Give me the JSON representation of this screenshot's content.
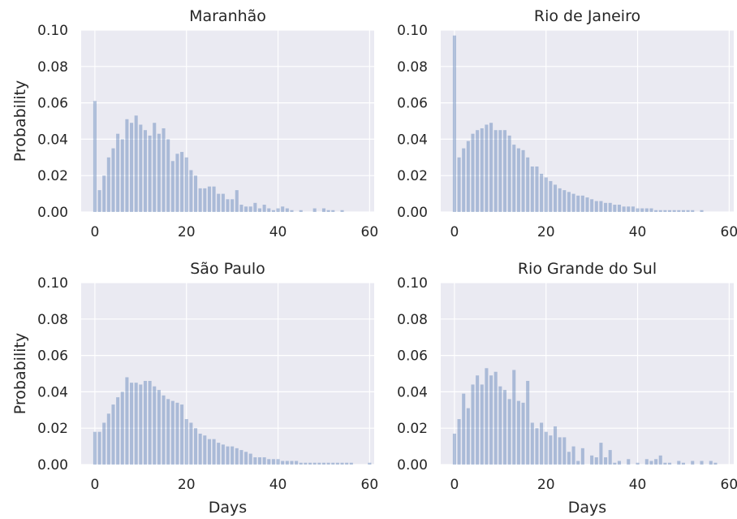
{
  "colors": {
    "panel_background": "#eaeaf2",
    "grid": "#ffffff",
    "bar_fill": "#4c72b0",
    "bar_opacity": 0.4,
    "text": "#262626"
  },
  "chart_data": [
    {
      "type": "bar",
      "title": "Maranhão",
      "xlabel": "",
      "ylabel": "Probability",
      "xlim": [
        -3,
        61
      ],
      "ylim": [
        0,
        0.1
      ],
      "grid": true,
      "xticks": [
        0,
        20,
        40,
        60
      ],
      "xtick_labels": [
        "0",
        "20",
        "40",
        "60"
      ],
      "yticks": [
        0,
        0.02,
        0.04,
        0.06,
        0.08,
        0.1
      ],
      "ytick_labels": [
        "0.00",
        "0.02",
        "0.04",
        "0.06",
        "0.08",
        "0.10"
      ],
      "x": [
        0,
        1,
        2,
        3,
        4,
        5,
        6,
        7,
        8,
        9,
        10,
        11,
        12,
        13,
        14,
        15,
        16,
        17,
        18,
        19,
        20,
        21,
        22,
        23,
        24,
        25,
        26,
        27,
        28,
        29,
        30,
        31,
        32,
        33,
        34,
        35,
        36,
        37,
        38,
        39,
        40,
        41,
        42,
        43,
        44,
        45,
        46,
        47,
        48,
        49,
        50,
        51,
        52,
        53,
        54,
        55,
        56,
        57,
        58,
        59,
        60
      ],
      "values": [
        0.061,
        0.012,
        0.02,
        0.03,
        0.035,
        0.043,
        0.04,
        0.051,
        0.049,
        0.053,
        0.048,
        0.045,
        0.042,
        0.049,
        0.043,
        0.046,
        0.04,
        0.028,
        0.032,
        0.033,
        0.03,
        0.023,
        0.02,
        0.013,
        0.013,
        0.014,
        0.014,
        0.01,
        0.01,
        0.007,
        0.007,
        0.012,
        0.004,
        0.003,
        0.003,
        0.005,
        0.002,
        0.004,
        0.002,
        0.001,
        0.002,
        0.003,
        0.002,
        0.001,
        0.0,
        0.001,
        0.0,
        0.0,
        0.002,
        0.0,
        0.002,
        0.001,
        0.001,
        0.0,
        0.001,
        0.0,
        0.0,
        0.0,
        0.0,
        0.0,
        0.0
      ]
    },
    {
      "type": "bar",
      "title": "Rio de Janeiro",
      "xlabel": "",
      "ylabel": "",
      "xlim": [
        -3,
        61
      ],
      "ylim": [
        0,
        0.1
      ],
      "grid": true,
      "xticks": [
        0,
        20,
        40,
        60
      ],
      "xtick_labels": [
        "0",
        "20",
        "40",
        "60"
      ],
      "yticks": [
        0,
        0.02,
        0.04,
        0.06,
        0.08,
        0.1
      ],
      "ytick_labels": [
        "0.00",
        "0.02",
        "0.04",
        "0.06",
        "0.08",
        "0.10"
      ],
      "x": [
        0,
        1,
        2,
        3,
        4,
        5,
        6,
        7,
        8,
        9,
        10,
        11,
        12,
        13,
        14,
        15,
        16,
        17,
        18,
        19,
        20,
        21,
        22,
        23,
        24,
        25,
        26,
        27,
        28,
        29,
        30,
        31,
        32,
        33,
        34,
        35,
        36,
        37,
        38,
        39,
        40,
        41,
        42,
        43,
        44,
        45,
        46,
        47,
        48,
        49,
        50,
        51,
        52,
        53,
        54,
        55,
        56,
        57,
        58,
        59,
        60
      ],
      "values": [
        0.097,
        0.03,
        0.035,
        0.039,
        0.043,
        0.045,
        0.046,
        0.048,
        0.049,
        0.045,
        0.045,
        0.045,
        0.042,
        0.037,
        0.035,
        0.034,
        0.03,
        0.025,
        0.025,
        0.021,
        0.019,
        0.017,
        0.015,
        0.013,
        0.012,
        0.011,
        0.01,
        0.009,
        0.009,
        0.008,
        0.007,
        0.006,
        0.006,
        0.005,
        0.005,
        0.004,
        0.004,
        0.003,
        0.003,
        0.003,
        0.002,
        0.002,
        0.002,
        0.002,
        0.001,
        0.001,
        0.001,
        0.001,
        0.001,
        0.001,
        0.001,
        0.001,
        0.001,
        0.0,
        0.001,
        0.0,
        0.0,
        0.0,
        0.0,
        0.0,
        0.0
      ]
    },
    {
      "type": "bar",
      "title": "São Paulo",
      "xlabel": "Days",
      "ylabel": "Probability",
      "xlim": [
        -3,
        61
      ],
      "ylim": [
        0,
        0.1
      ],
      "grid": true,
      "xticks": [
        0,
        20,
        40,
        60
      ],
      "xtick_labels": [
        "0",
        "20",
        "40",
        "60"
      ],
      "yticks": [
        0,
        0.02,
        0.04,
        0.06,
        0.08,
        0.1
      ],
      "ytick_labels": [
        "0.00",
        "0.02",
        "0.04",
        "0.06",
        "0.08",
        "0.10"
      ],
      "x": [
        0,
        1,
        2,
        3,
        4,
        5,
        6,
        7,
        8,
        9,
        10,
        11,
        12,
        13,
        14,
        15,
        16,
        17,
        18,
        19,
        20,
        21,
        22,
        23,
        24,
        25,
        26,
        27,
        28,
        29,
        30,
        31,
        32,
        33,
        34,
        35,
        36,
        37,
        38,
        39,
        40,
        41,
        42,
        43,
        44,
        45,
        46,
        47,
        48,
        49,
        50,
        51,
        52,
        53,
        54,
        55,
        56,
        57,
        58,
        59,
        60
      ],
      "values": [
        0.018,
        0.018,
        0.023,
        0.028,
        0.033,
        0.037,
        0.04,
        0.048,
        0.045,
        0.045,
        0.044,
        0.046,
        0.046,
        0.043,
        0.041,
        0.038,
        0.036,
        0.035,
        0.034,
        0.033,
        0.025,
        0.023,
        0.02,
        0.017,
        0.016,
        0.014,
        0.014,
        0.012,
        0.011,
        0.01,
        0.01,
        0.009,
        0.008,
        0.007,
        0.006,
        0.004,
        0.004,
        0.004,
        0.003,
        0.003,
        0.003,
        0.002,
        0.002,
        0.002,
        0.002,
        0.001,
        0.001,
        0.001,
        0.001,
        0.001,
        0.001,
        0.001,
        0.001,
        0.001,
        0.001,
        0.001,
        0.001,
        0.0,
        0.0,
        0.0,
        0.001
      ]
    },
    {
      "type": "bar",
      "title": "Rio Grande do Sul",
      "xlabel": "Days",
      "ylabel": "",
      "xlim": [
        -3,
        61
      ],
      "ylim": [
        0,
        0.1
      ],
      "grid": true,
      "xticks": [
        0,
        20,
        40,
        60
      ],
      "xtick_labels": [
        "0",
        "20",
        "40",
        "60"
      ],
      "yticks": [
        0,
        0.02,
        0.04,
        0.06,
        0.08,
        0.1
      ],
      "ytick_labels": [
        "0.00",
        "0.02",
        "0.04",
        "0.06",
        "0.08",
        "0.10"
      ],
      "x": [
        0,
        1,
        2,
        3,
        4,
        5,
        6,
        7,
        8,
        9,
        10,
        11,
        12,
        13,
        14,
        15,
        16,
        17,
        18,
        19,
        20,
        21,
        22,
        23,
        24,
        25,
        26,
        27,
        28,
        29,
        30,
        31,
        32,
        33,
        34,
        35,
        36,
        37,
        38,
        39,
        40,
        41,
        42,
        43,
        44,
        45,
        46,
        47,
        48,
        49,
        50,
        51,
        52,
        53,
        54,
        55,
        56,
        57,
        58,
        59,
        60
      ],
      "values": [
        0.017,
        0.025,
        0.039,
        0.031,
        0.044,
        0.049,
        0.044,
        0.053,
        0.049,
        0.051,
        0.043,
        0.041,
        0.036,
        0.052,
        0.035,
        0.034,
        0.046,
        0.023,
        0.02,
        0.023,
        0.018,
        0.016,
        0.021,
        0.015,
        0.015,
        0.007,
        0.01,
        0.002,
        0.009,
        0.0,
        0.005,
        0.004,
        0.012,
        0.004,
        0.008,
        0.001,
        0.002,
        0.0,
        0.003,
        0.0,
        0.001,
        0.0,
        0.003,
        0.002,
        0.003,
        0.005,
        0.001,
        0.001,
        0.0,
        0.002,
        0.001,
        0.0,
        0.002,
        0.0,
        0.002,
        0.0,
        0.002,
        0.001,
        0.0,
        0.0,
        0.0
      ]
    }
  ]
}
